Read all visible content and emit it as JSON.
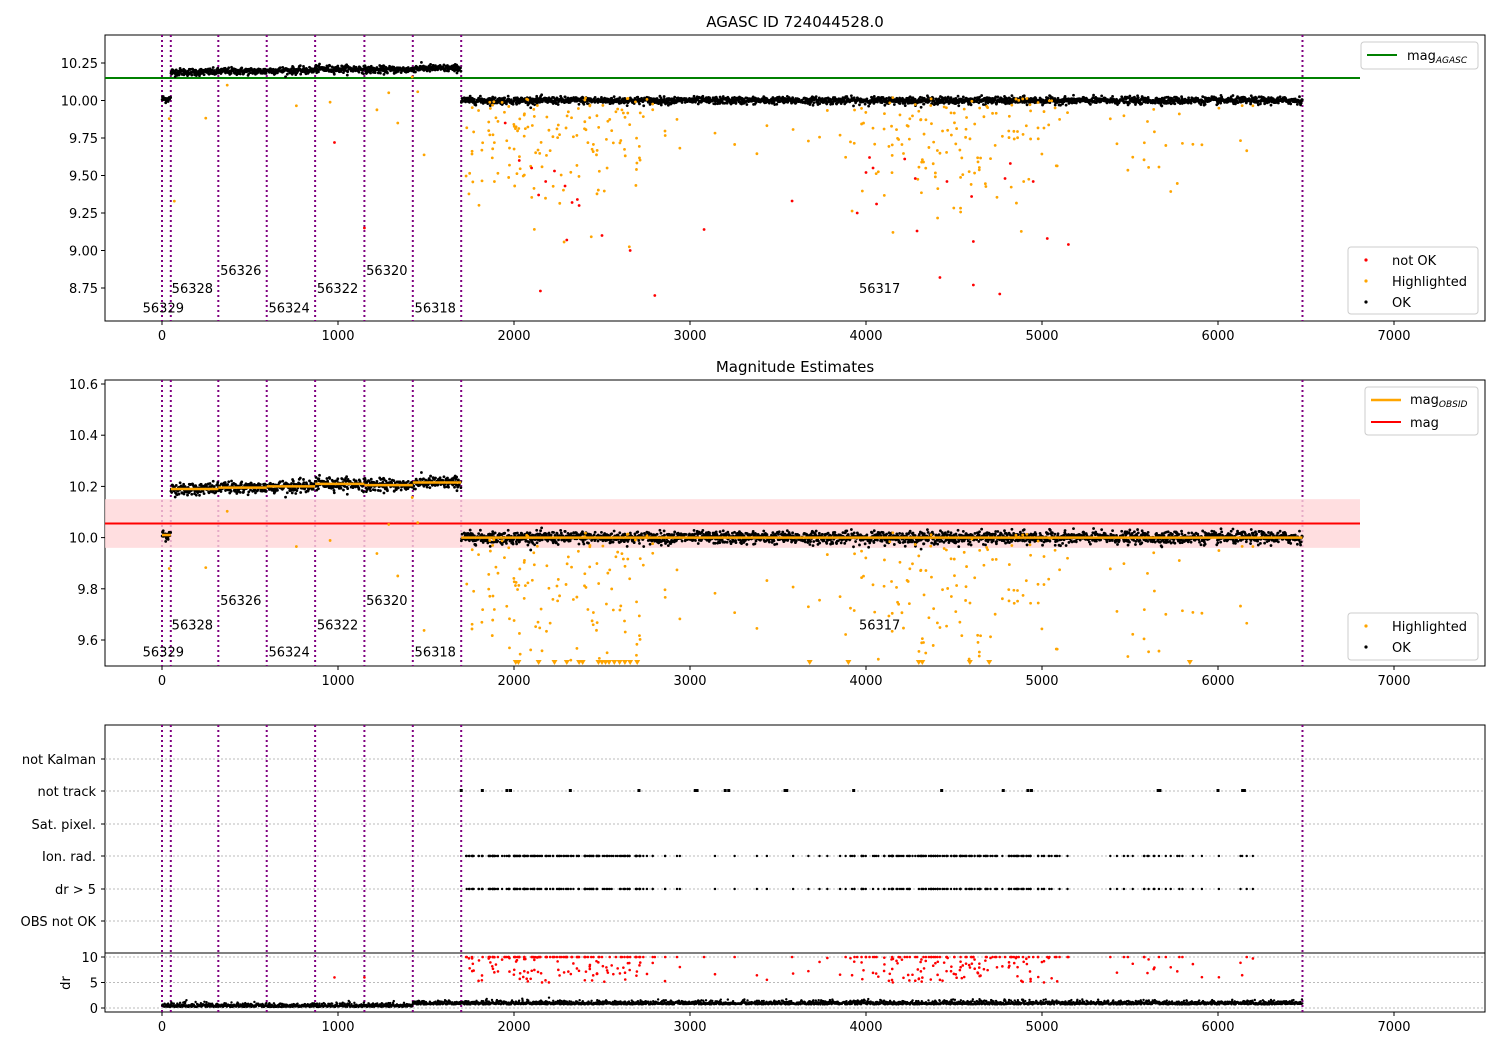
{
  "chart_data": [
    {
      "type": "scatter",
      "title": "AGASC ID 724044528.0",
      "xlim": [
        -330,
        7500
      ],
      "ylim": [
        8.55,
        10.35
      ],
      "xticks": [
        0,
        1000,
        2000,
        3000,
        4000,
        5000,
        6000,
        7000
      ],
      "yticks": [
        "8.75",
        "9.00",
        "9.25",
        "9.50",
        "9.75",
        "10.00",
        "10.25"
      ],
      "mag_agasc": 10.15,
      "legend_top": {
        "label": "mag",
        "sub": "AGASC",
        "position": "top-right"
      },
      "legend_bottom": {
        "items": [
          "not OK",
          "Highlighted",
          "OK"
        ],
        "position": "lower-right"
      },
      "obsids": [
        {
          "id": "56329",
          "start": 0,
          "end": 50,
          "mean": 10.01,
          "sd": 0.012
        },
        {
          "id": "56328",
          "start": 50,
          "end": 320,
          "mean": 10.19,
          "sd": 0.012
        },
        {
          "id": "56326",
          "start": 320,
          "end": 595,
          "mean": 10.195,
          "sd": 0.012
        },
        {
          "id": "56324",
          "start": 595,
          "end": 870,
          "mean": 10.2,
          "sd": 0.012
        },
        {
          "id": "56322",
          "start": 870,
          "end": 1150,
          "mean": 10.21,
          "sd": 0.012
        },
        {
          "id": "56320",
          "start": 1150,
          "end": 1425,
          "mean": 10.205,
          "sd": 0.012
        },
        {
          "id": "56318",
          "start": 1425,
          "end": 1700,
          "mean": 10.215,
          "sd": 0.012
        },
        {
          "id": "56317",
          "start": 1700,
          "end": 6480,
          "mean": 10.0,
          "sd": 0.012
        }
      ],
      "obsid_label_mags": [
        8.62,
        8.75,
        8.87,
        8.62,
        8.75,
        8.87,
        8.62,
        8.75
      ],
      "obsid_label_x": [
        -110,
        55,
        330,
        605,
        880,
        1160,
        1435,
        3960
      ],
      "boundaries": [
        0,
        50,
        320,
        595,
        870,
        1150,
        1425,
        1700,
        6480
      ],
      "not_ok_points": [
        [
          980,
          9.72
        ],
        [
          1150,
          9.15
        ],
        [
          1950,
          9.85
        ],
        [
          2030,
          9.6
        ],
        [
          2100,
          9.55
        ],
        [
          2140,
          9.37
        ],
        [
          2150,
          8.73
        ],
        [
          2180,
          9.46
        ],
        [
          2230,
          9.53
        ],
        [
          2290,
          9.43
        ],
        [
          2300,
          9.07
        ],
        [
          2330,
          9.32
        ],
        [
          2360,
          9.34
        ],
        [
          2370,
          9.3
        ],
        [
          2500,
          9.1
        ],
        [
          2660,
          9.0
        ],
        [
          2800,
          8.7
        ],
        [
          3080,
          9.14
        ],
        [
          3580,
          9.33
        ],
        [
          3950,
          9.25
        ],
        [
          4000,
          9.52
        ],
        [
          4020,
          9.62
        ],
        [
          4040,
          9.55
        ],
        [
          4060,
          9.31
        ],
        [
          4220,
          9.61
        ],
        [
          4280,
          9.48
        ],
        [
          4290,
          9.13
        ],
        [
          4420,
          8.82
        ],
        [
          4460,
          9.46
        ],
        [
          4600,
          9.36
        ],
        [
          4610,
          9.06
        ],
        [
          4610,
          8.77
        ],
        [
          4760,
          8.71
        ],
        [
          4790,
          9.48
        ],
        [
          4820,
          9.58
        ],
        [
          4950,
          9.46
        ],
        [
          5030,
          9.08
        ],
        [
          5150,
          9.04
        ]
      ],
      "highlight_regions": [
        {
          "start": 1720,
          "end": 2800,
          "count": 150
        },
        {
          "start": 2800,
          "end": 3900,
          "count": 14
        },
        {
          "start": 3900,
          "end": 5100,
          "count": 140
        },
        {
          "start": 5100,
          "end": 6200,
          "count": 25
        },
        {
          "start": 0,
          "end": 1700,
          "count": 12
        }
      ]
    },
    {
      "type": "scatter",
      "title": "Magnitude Estimates",
      "ylim": [
        9.5,
        10.6
      ],
      "yticks": [
        "9.6",
        "9.8",
        "10.0",
        "10.2",
        "10.4",
        "10.6"
      ],
      "mag": 10.055,
      "mag_band": [
        9.96,
        10.15
      ],
      "legend_top": {
        "items": [
          {
            "label": "mag",
            "sub": "OBSID"
          },
          {
            "label": "mag",
            "sub": ""
          }
        ],
        "position": "top-right"
      },
      "legend_bottom": {
        "items": [
          "Highlighted",
          "OK"
        ],
        "position": "lower-right"
      },
      "below_range_x": [
        2010,
        2025,
        2140,
        2230,
        2300,
        2370,
        2390,
        2480,
        2500,
        2520,
        2540,
        2570,
        2600,
        2630,
        2660,
        2700,
        3680,
        3900,
        4300,
        4320,
        4590,
        4700,
        5840
      ]
    },
    {
      "type": "scatter",
      "categories": [
        "not Kalman",
        "not track",
        "Sat. pixel.",
        "Ion. rad.",
        "dr > 5",
        "OBS not OK"
      ],
      "dr_ylabel": "dr",
      "dr_yticks": [
        "0",
        "5",
        "10"
      ],
      "not_track_x": [
        1700,
        1820,
        1960,
        1980,
        2320,
        2710,
        3030,
        3040,
        3200,
        3220,
        3540,
        3550,
        3930,
        4430,
        4780,
        4920,
        4940,
        5660,
        5670,
        6000,
        6140,
        6150
      ]
    }
  ],
  "colors": {
    "ok": "#000000",
    "highlighted": "#ffa500",
    "not_ok": "#ff0000",
    "agasc": "#008000",
    "mag": "#ff0000",
    "band": "#ffd6d8",
    "boundary": "#800080"
  }
}
